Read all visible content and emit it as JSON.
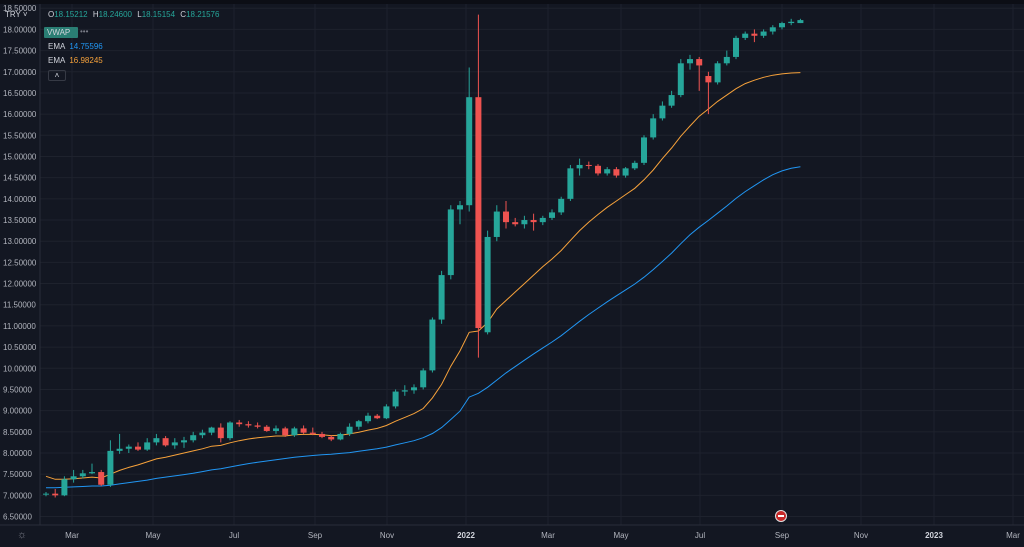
{
  "symbol": {
    "label": "TRY ˅"
  },
  "ohlc": {
    "o_label": "O",
    "o": "18.15212",
    "h_label": "H",
    "h": "18.24600",
    "l_label": "L",
    "l": "18.15154",
    "c_label": "C",
    "c": "18.21576"
  },
  "indicators": {
    "vwap_label": "VWAP",
    "vwap_dots": "•••",
    "ema1": {
      "label": "EMA",
      "value": "14.75596",
      "color": "#2962ff"
    },
    "ema2": {
      "label": "EMA",
      "value": "16.98245",
      "color": "#f7a23b"
    },
    "collapse_icon": "˄"
  },
  "colors": {
    "up": "#26a69a",
    "down": "#ef5350",
    "background": "#131722",
    "grid": "#1e222d",
    "axis_text": "#b2b5be"
  },
  "chart_data": {
    "type": "candlestick",
    "title": "",
    "ylim": [
      6.3,
      18.6
    ],
    "y_ticks": [
      "6.50000",
      "7.00000",
      "7.50000",
      "8.00000",
      "8.50000",
      "9.00000",
      "9.50000",
      "10.00000",
      "10.50000",
      "11.00000",
      "11.50000",
      "12.00000",
      "12.50000",
      "13.00000",
      "13.50000",
      "14.00000",
      "14.50000",
      "15.00000",
      "15.50000",
      "16.00000",
      "16.50000",
      "17.00000",
      "17.50000",
      "18.00000",
      "18.50000"
    ],
    "x_ticks": [
      "Mar",
      "May",
      "Jul",
      "Sep",
      "Nov",
      "2022",
      "Mar",
      "May",
      "Jul",
      "Sep",
      "Nov",
      "2023",
      "Mar"
    ],
    "candles": [
      {
        "o": 7.02,
        "h": 7.08,
        "l": 6.98,
        "c": 7.04
      },
      {
        "o": 7.04,
        "h": 7.15,
        "l": 6.95,
        "c": 7.0
      },
      {
        "o": 7.0,
        "h": 7.45,
        "l": 6.98,
        "c": 7.38
      },
      {
        "o": 7.38,
        "h": 7.6,
        "l": 7.3,
        "c": 7.45
      },
      {
        "o": 7.45,
        "h": 7.6,
        "l": 7.4,
        "c": 7.52
      },
      {
        "o": 7.52,
        "h": 7.75,
        "l": 7.5,
        "c": 7.55
      },
      {
        "o": 7.55,
        "h": 7.6,
        "l": 7.22,
        "c": 7.25
      },
      {
        "o": 7.25,
        "h": 8.3,
        "l": 7.2,
        "c": 8.05
      },
      {
        "o": 8.05,
        "h": 8.45,
        "l": 7.98,
        "c": 8.1
      },
      {
        "o": 8.1,
        "h": 8.2,
        "l": 8.0,
        "c": 8.15
      },
      {
        "o": 8.15,
        "h": 8.25,
        "l": 8.05,
        "c": 8.08
      },
      {
        "o": 8.08,
        "h": 8.35,
        "l": 8.05,
        "c": 8.25
      },
      {
        "o": 8.25,
        "h": 8.45,
        "l": 8.18,
        "c": 8.35
      },
      {
        "o": 8.35,
        "h": 8.4,
        "l": 8.15,
        "c": 8.18
      },
      {
        "o": 8.18,
        "h": 8.35,
        "l": 8.1,
        "c": 8.25
      },
      {
        "o": 8.25,
        "h": 8.38,
        "l": 8.12,
        "c": 8.3
      },
      {
        "o": 8.3,
        "h": 8.5,
        "l": 8.25,
        "c": 8.42
      },
      {
        "o": 8.42,
        "h": 8.55,
        "l": 8.35,
        "c": 8.48
      },
      {
        "o": 8.48,
        "h": 8.62,
        "l": 8.42,
        "c": 8.6
      },
      {
        "o": 8.6,
        "h": 8.7,
        "l": 8.25,
        "c": 8.35
      },
      {
        "o": 8.35,
        "h": 8.75,
        "l": 8.3,
        "c": 8.72
      },
      {
        "o": 8.72,
        "h": 8.78,
        "l": 8.62,
        "c": 8.68
      },
      {
        "o": 8.68,
        "h": 8.75,
        "l": 8.6,
        "c": 8.65
      },
      {
        "o": 8.65,
        "h": 8.72,
        "l": 8.58,
        "c": 8.62
      },
      {
        "o": 8.62,
        "h": 8.66,
        "l": 8.5,
        "c": 8.52
      },
      {
        "o": 8.52,
        "h": 8.65,
        "l": 8.45,
        "c": 8.58
      },
      {
        "o": 8.58,
        "h": 8.62,
        "l": 8.38,
        "c": 8.42
      },
      {
        "o": 8.42,
        "h": 8.62,
        "l": 8.38,
        "c": 8.58
      },
      {
        "o": 8.58,
        "h": 8.65,
        "l": 8.45,
        "c": 8.48
      },
      {
        "o": 8.48,
        "h": 8.6,
        "l": 8.42,
        "c": 8.45
      },
      {
        "o": 8.45,
        "h": 8.5,
        "l": 8.35,
        "c": 8.38
      },
      {
        "o": 8.38,
        "h": 8.42,
        "l": 8.28,
        "c": 8.32
      },
      {
        "o": 8.32,
        "h": 8.48,
        "l": 8.3,
        "c": 8.45
      },
      {
        "o": 8.45,
        "h": 8.7,
        "l": 8.4,
        "c": 8.62
      },
      {
        "o": 8.62,
        "h": 8.78,
        "l": 8.55,
        "c": 8.75
      },
      {
        "o": 8.75,
        "h": 8.95,
        "l": 8.7,
        "c": 8.88
      },
      {
        "o": 8.88,
        "h": 8.92,
        "l": 8.8,
        "c": 8.82
      },
      {
        "o": 8.82,
        "h": 9.15,
        "l": 8.8,
        "c": 9.1
      },
      {
        "o": 9.1,
        "h": 9.5,
        "l": 9.05,
        "c": 9.45
      },
      {
        "o": 9.45,
        "h": 9.6,
        "l": 9.35,
        "c": 9.48
      },
      {
        "o": 9.48,
        "h": 9.62,
        "l": 9.4,
        "c": 9.55
      },
      {
        "o": 9.55,
        "h": 10.0,
        "l": 9.5,
        "c": 9.95
      },
      {
        "o": 9.95,
        "h": 11.2,
        "l": 9.9,
        "c": 11.15
      },
      {
        "o": 11.15,
        "h": 12.3,
        "l": 11.05,
        "c": 12.2
      },
      {
        "o": 12.2,
        "h": 13.85,
        "l": 12.1,
        "c": 13.75
      },
      {
        "o": 13.75,
        "h": 13.95,
        "l": 13.4,
        "c": 13.85
      },
      {
        "o": 13.85,
        "h": 17.1,
        "l": 13.7,
        "c": 16.4
      },
      {
        "o": 16.4,
        "h": 18.35,
        "l": 10.25,
        "c": 10.95
      },
      {
        "o": 10.85,
        "h": 13.25,
        "l": 10.8,
        "c": 13.1
      },
      {
        "o": 13.1,
        "h": 13.85,
        "l": 13.0,
        "c": 13.7
      },
      {
        "o": 13.7,
        "h": 13.95,
        "l": 13.3,
        "c": 13.45
      },
      {
        "o": 13.45,
        "h": 13.55,
        "l": 13.35,
        "c": 13.4
      },
      {
        "o": 13.4,
        "h": 13.6,
        "l": 13.3,
        "c": 13.5
      },
      {
        "o": 13.5,
        "h": 13.65,
        "l": 13.25,
        "c": 13.45
      },
      {
        "o": 13.45,
        "h": 13.6,
        "l": 13.38,
        "c": 13.55
      },
      {
        "o": 13.55,
        "h": 13.75,
        "l": 13.5,
        "c": 13.68
      },
      {
        "o": 13.68,
        "h": 14.05,
        "l": 13.62,
        "c": 14.0
      },
      {
        "o": 14.0,
        "h": 14.8,
        "l": 13.95,
        "c": 14.72
      },
      {
        "o": 14.72,
        "h": 14.95,
        "l": 14.55,
        "c": 14.8
      },
      {
        "o": 14.8,
        "h": 14.88,
        "l": 14.7,
        "c": 14.78
      },
      {
        "o": 14.78,
        "h": 14.82,
        "l": 14.55,
        "c": 14.6
      },
      {
        "o": 14.6,
        "h": 14.75,
        "l": 14.55,
        "c": 14.7
      },
      {
        "o": 14.7,
        "h": 14.75,
        "l": 14.5,
        "c": 14.55
      },
      {
        "o": 14.55,
        "h": 14.75,
        "l": 14.5,
        "c": 14.72
      },
      {
        "o": 14.72,
        "h": 14.9,
        "l": 14.68,
        "c": 14.85
      },
      {
        "o": 14.85,
        "h": 15.5,
        "l": 14.8,
        "c": 15.45
      },
      {
        "o": 15.45,
        "h": 16.0,
        "l": 15.4,
        "c": 15.9
      },
      {
        "o": 15.9,
        "h": 16.3,
        "l": 15.85,
        "c": 16.2
      },
      {
        "o": 16.2,
        "h": 16.55,
        "l": 16.15,
        "c": 16.45
      },
      {
        "o": 16.45,
        "h": 17.3,
        "l": 16.4,
        "c": 17.2
      },
      {
        "o": 17.2,
        "h": 17.4,
        "l": 17.05,
        "c": 17.3
      },
      {
        "o": 17.3,
        "h": 17.35,
        "l": 16.55,
        "c": 17.15
      },
      {
        "o": 16.9,
        "h": 17.0,
        "l": 16.0,
        "c": 16.75
      },
      {
        "o": 16.75,
        "h": 17.25,
        "l": 16.7,
        "c": 17.2
      },
      {
        "o": 17.2,
        "h": 17.5,
        "l": 17.15,
        "c": 17.35
      },
      {
        "o": 17.35,
        "h": 17.85,
        "l": 17.3,
        "c": 17.8
      },
      {
        "o": 17.8,
        "h": 17.95,
        "l": 17.75,
        "c": 17.9
      },
      {
        "o": 17.9,
        "h": 18.0,
        "l": 17.7,
        "c": 17.85
      },
      {
        "o": 17.85,
        "h": 18.0,
        "l": 17.8,
        "c": 17.95
      },
      {
        "o": 17.95,
        "h": 18.1,
        "l": 17.88,
        "c": 18.05
      },
      {
        "o": 18.05,
        "h": 18.18,
        "l": 18.0,
        "c": 18.15
      },
      {
        "o": 18.15,
        "h": 18.25,
        "l": 18.1,
        "c": 18.18
      },
      {
        "o": 18.15,
        "h": 18.25,
        "l": 18.15,
        "c": 18.22
      }
    ],
    "ema_slow": [
      7.18,
      7.18,
      7.19,
      7.2,
      7.21,
      7.22,
      7.22,
      7.24,
      7.27,
      7.3,
      7.33,
      7.36,
      7.4,
      7.43,
      7.46,
      7.49,
      7.52,
      7.56,
      7.6,
      7.63,
      7.67,
      7.71,
      7.75,
      7.78,
      7.81,
      7.84,
      7.87,
      7.9,
      7.92,
      7.94,
      7.96,
      7.97,
      7.99,
      8.01,
      8.04,
      8.07,
      8.1,
      8.14,
      8.19,
      8.24,
      8.29,
      8.36,
      8.46,
      8.6,
      8.79,
      8.99,
      9.32,
      9.41,
      9.55,
      9.72,
      9.89,
      10.04,
      10.19,
      10.34,
      10.48,
      10.62,
      10.77,
      10.94,
      11.11,
      11.27,
      11.42,
      11.57,
      11.71,
      11.85,
      11.99,
      12.15,
      12.33,
      12.52,
      12.72,
      12.94,
      13.15,
      13.33,
      13.49,
      13.66,
      13.83,
      14.01,
      14.17,
      14.31,
      14.45,
      14.57,
      14.66,
      14.72,
      14.76
    ],
    "ema_fast": [
      7.45,
      7.38,
      7.38,
      7.39,
      7.41,
      7.43,
      7.41,
      7.5,
      7.59,
      7.66,
      7.72,
      7.79,
      7.86,
      7.9,
      7.95,
      8.0,
      8.05,
      8.1,
      8.16,
      8.18,
      8.24,
      8.29,
      8.33,
      8.36,
      8.38,
      8.4,
      8.4,
      8.43,
      8.44,
      8.44,
      8.43,
      8.41,
      8.42,
      8.45,
      8.49,
      8.54,
      8.58,
      8.65,
      8.75,
      8.84,
      8.93,
      9.05,
      9.3,
      9.62,
      10.05,
      10.41,
      10.85,
      10.88,
      11.08,
      11.4,
      11.6,
      11.8,
      12.0,
      12.2,
      12.4,
      12.58,
      12.78,
      13.02,
      13.25,
      13.45,
      13.63,
      13.8,
      13.95,
      14.1,
      14.25,
      14.45,
      14.68,
      14.95,
      15.2,
      15.48,
      15.72,
      15.95,
      16.12,
      16.3,
      16.45,
      16.6,
      16.72,
      16.8,
      16.87,
      16.92,
      16.95,
      16.97,
      16.98
    ]
  }
}
